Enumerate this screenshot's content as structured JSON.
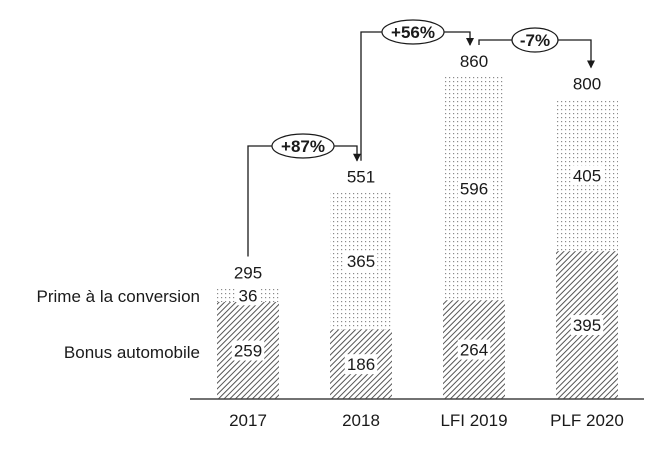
{
  "chart_data": {
    "type": "bar",
    "stacked": true,
    "title": "",
    "xlabel": "",
    "ylabel": "",
    "ylim": [
      0,
      860
    ],
    "grid": false,
    "categories": [
      "2017",
      "2018",
      "LFI 2019",
      "PLF 2020"
    ],
    "series": [
      {
        "name": "Bonus automobile",
        "pattern": "diagonal-hatch",
        "values": [
          259,
          186,
          264,
          395
        ]
      },
      {
        "name": "Prime à la conversion",
        "pattern": "dots",
        "values": [
          36,
          365,
          596,
          405
        ]
      }
    ],
    "totals": [
      295,
      551,
      860,
      800
    ],
    "legend_placement": "left",
    "annotations": [
      {
        "from": "2017",
        "to": "2018",
        "label": "+87%"
      },
      {
        "from": "2018",
        "to": "LFI 2019",
        "label": "+56%"
      },
      {
        "from": "LFI 2019",
        "to": "PLF 2020",
        "label": "-7%"
      }
    ]
  },
  "colors": {
    "text": "#1a1a1a",
    "hatch": "#555555",
    "dots": "#8a8a8a",
    "axis": "#444444"
  }
}
